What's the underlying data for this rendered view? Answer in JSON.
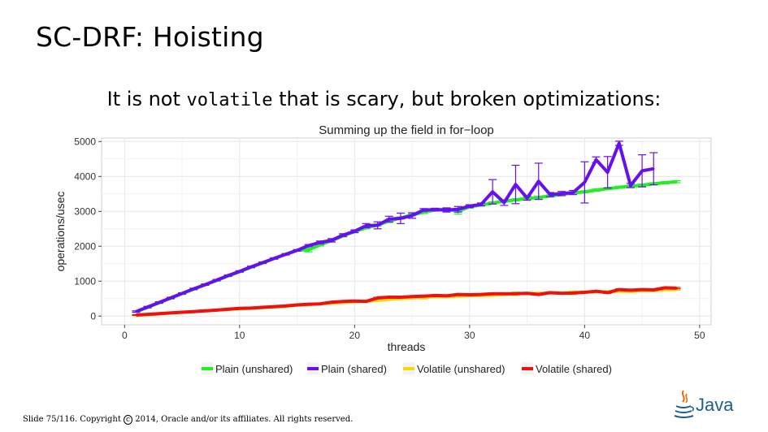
{
  "slide": {
    "title": "SC-DRF: Hoisting",
    "subtitle_pre": "It is not ",
    "subtitle_code": "volatile",
    "subtitle_post": " that is scary, but broken optimizations:",
    "footer_slide": "Slide 75/116.",
    "footer_copyright_pre": "Copyright",
    "footer_copyright_symbol": "c",
    "footer_copyright_post": "2014, Oracle and/or its affiliates.  All rights reserved.",
    "logo_text": "Java"
  },
  "colors": {
    "plain_unshared": "#22ee22",
    "plain_shared": "#6610f2",
    "volatile_unshared": "#f5d800",
    "volatile_shared": "#ee1111",
    "panel_bg": "#ffffff",
    "grid": "#e6e6e6",
    "logo_blue": "#1c5f8f",
    "logo_orange": "#e76f00"
  },
  "chart_data": {
    "type": "line",
    "title": "Summing up the field in for−loop",
    "xlabel": "threads",
    "ylabel": "operations/usec",
    "xlim": [
      -2,
      51
    ],
    "ylim": [
      -250,
      5100
    ],
    "xticks": [
      0,
      10,
      20,
      30,
      40,
      50
    ],
    "yticks": [
      0,
      1000,
      2000,
      3000,
      4000,
      5000
    ],
    "grid": true,
    "legend_position": "bottom",
    "series": [
      {
        "name": "Plain (unshared)",
        "color_key": "plain_unshared",
        "x": [
          1,
          2,
          3,
          4,
          5,
          6,
          7,
          8,
          9,
          10,
          11,
          12,
          13,
          14,
          15,
          16,
          17,
          18,
          19,
          20,
          21,
          22,
          23,
          24,
          25,
          26,
          27,
          28,
          29,
          30,
          31,
          32,
          33,
          34,
          35,
          36,
          37,
          38,
          39,
          40,
          41,
          42,
          43,
          44,
          45,
          46,
          47,
          48
        ],
        "y": [
          125,
          250,
          380,
          510,
          640,
          770,
          900,
          1020,
          1150,
          1270,
          1400,
          1520,
          1650,
          1770,
          1890,
          1900,
          2040,
          2160,
          2300,
          2420,
          2530,
          2610,
          2720,
          2810,
          2900,
          2970,
          3040,
          3060,
          3000,
          3130,
          3180,
          3240,
          3290,
          3330,
          3370,
          3400,
          3440,
          3480,
          3530,
          3560,
          3610,
          3650,
          3690,
          3720,
          3750,
          3790,
          3820,
          3850
        ],
        "err": [
          20,
          20,
          20,
          20,
          20,
          20,
          20,
          20,
          20,
          20,
          20,
          20,
          20,
          20,
          20,
          60,
          30,
          30,
          30,
          30,
          30,
          30,
          40,
          30,
          30,
          30,
          30,
          40,
          80,
          40,
          30,
          30,
          30,
          30,
          30,
          30,
          30,
          30,
          30,
          30,
          30,
          30,
          30,
          30,
          30,
          30,
          30,
          30
        ]
      },
      {
        "name": "Plain (shared)",
        "color_key": "plain_shared",
        "x": [
          1,
          2,
          3,
          4,
          5,
          6,
          7,
          8,
          9,
          10,
          11,
          12,
          13,
          14,
          15,
          16,
          17,
          18,
          19,
          20,
          21,
          22,
          23,
          24,
          25,
          26,
          27,
          28,
          29,
          30,
          31,
          32,
          33,
          34,
          35,
          36,
          37,
          38,
          39,
          40,
          41,
          42,
          43,
          44,
          45,
          46
        ],
        "y": [
          130,
          260,
          390,
          520,
          650,
          780,
          900,
          1030,
          1160,
          1280,
          1410,
          1530,
          1650,
          1770,
          1880,
          2020,
          2110,
          2170,
          2320,
          2430,
          2590,
          2600,
          2780,
          2800,
          2880,
          3040,
          3050,
          3040,
          3060,
          3150,
          3200,
          3560,
          3250,
          3770,
          3380,
          3860,
          3480,
          3510,
          3540,
          3830,
          4480,
          4120,
          4950,
          3740,
          4160,
          4220
        ],
        "err": [
          20,
          20,
          20,
          20,
          20,
          20,
          20,
          20,
          20,
          20,
          20,
          20,
          20,
          20,
          20,
          30,
          40,
          50,
          40,
          40,
          60,
          100,
          80,
          150,
          80,
          40,
          40,
          60,
          80,
          40,
          40,
          350,
          80,
          550,
          60,
          520,
          60,
          60,
          60,
          590,
          80,
          450,
          60,
          60,
          460,
          460
        ]
      },
      {
        "name": "Volatile (unshared)",
        "color_key": "volatile_unshared",
        "x": [
          1,
          2,
          3,
          4,
          5,
          6,
          7,
          8,
          9,
          10,
          11,
          12,
          13,
          14,
          15,
          16,
          17,
          18,
          19,
          20,
          21,
          22,
          23,
          24,
          25,
          26,
          27,
          28,
          29,
          30,
          31,
          32,
          33,
          34,
          35,
          36,
          37,
          38,
          39,
          40,
          41,
          42,
          43,
          44,
          45,
          46,
          47,
          48
        ],
        "y": [
          20,
          40,
          60,
          90,
          110,
          130,
          150,
          170,
          190,
          210,
          220,
          240,
          260,
          280,
          310,
          330,
          350,
          370,
          390,
          410,
          430,
          450,
          480,
          500,
          520,
          540,
          560,
          560,
          570,
          580,
          590,
          600,
          620,
          640,
          650,
          650,
          660,
          660,
          670,
          690,
          700,
          700,
          710,
          710,
          730,
          730,
          760,
          760
        ],
        "err": [
          10,
          10,
          10,
          10,
          10,
          10,
          10,
          10,
          10,
          10,
          10,
          10,
          10,
          10,
          10,
          10,
          10,
          10,
          10,
          10,
          10,
          10,
          10,
          10,
          10,
          50,
          20,
          30,
          20,
          20,
          20,
          20,
          20,
          50,
          20,
          20,
          20,
          20,
          50,
          20,
          20,
          20,
          20,
          40,
          20,
          20,
          20,
          20
        ]
      },
      {
        "name": "Volatile (shared)",
        "color_key": "volatile_shared",
        "x": [
          1,
          2,
          3,
          4,
          5,
          6,
          7,
          8,
          9,
          10,
          11,
          12,
          13,
          14,
          15,
          16,
          17,
          18,
          19,
          20,
          21,
          22,
          23,
          24,
          25,
          26,
          27,
          28,
          29,
          30,
          31,
          32,
          33,
          34,
          35,
          36,
          37,
          38,
          39,
          40,
          41,
          42,
          43,
          44,
          45,
          46,
          47,
          48
        ],
        "y": [
          30,
          50,
          70,
          90,
          110,
          130,
          150,
          170,
          200,
          220,
          230,
          250,
          270,
          290,
          320,
          340,
          350,
          400,
          420,
          430,
          420,
          520,
          540,
          540,
          560,
          570,
          590,
          580,
          620,
          610,
          620,
          640,
          640,
          640,
          650,
          620,
          670,
          650,
          660,
          680,
          710,
          670,
          760,
          740,
          760,
          750,
          810,
          800
        ],
        "err": [
          10,
          10,
          10,
          10,
          10,
          10,
          10,
          10,
          10,
          10,
          10,
          10,
          10,
          10,
          10,
          10,
          10,
          10,
          10,
          10,
          10,
          20,
          20,
          20,
          20,
          20,
          20,
          20,
          20,
          20,
          20,
          20,
          20,
          20,
          20,
          20,
          20,
          20,
          20,
          20,
          20,
          20,
          20,
          20,
          20,
          20,
          20,
          20
        ]
      }
    ]
  }
}
